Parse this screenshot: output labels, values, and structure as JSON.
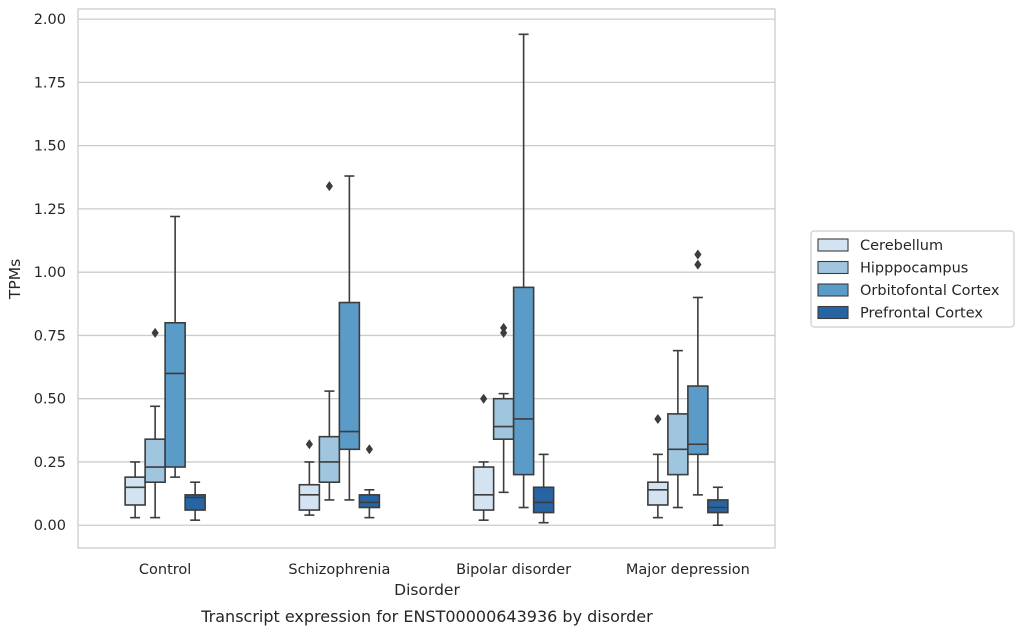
{
  "caption": "Transcript expression for ENST00000643936 by disorder",
  "chart_data": {
    "type": "box",
    "xlabel": "Disorder",
    "ylabel": "TPMs",
    "ylim": [
      -0.09,
      2.04
    ],
    "yticks": [
      0.0,
      0.25,
      0.5,
      0.75,
      1.0,
      1.25,
      1.5,
      1.75,
      2.0
    ],
    "ytick_labels": [
      "0.00",
      "0.25",
      "0.50",
      "0.75",
      "1.00",
      "1.25",
      "1.50",
      "1.75",
      "2.00"
    ],
    "grid": "horizontal",
    "legend_position": "right",
    "categories": [
      "Control",
      "Schizophrenia",
      "Bipolar disorder",
      "Major depression"
    ],
    "series": [
      {
        "name": "Cerebellum",
        "color": "#d4e3f2",
        "boxes": [
          {
            "whisker_low": 0.03,
            "q1": 0.08,
            "median": 0.15,
            "q3": 0.19,
            "whisker_high": 0.25,
            "outliers": []
          },
          {
            "whisker_low": 0.04,
            "q1": 0.06,
            "median": 0.12,
            "q3": 0.16,
            "whisker_high": 0.25,
            "outliers": [
              0.32
            ]
          },
          {
            "whisker_low": 0.02,
            "q1": 0.06,
            "median": 0.12,
            "q3": 0.23,
            "whisker_high": 0.25,
            "outliers": [
              0.5
            ]
          },
          {
            "whisker_low": 0.03,
            "q1": 0.08,
            "median": 0.14,
            "q3": 0.17,
            "whisker_high": 0.28,
            "outliers": [
              0.42
            ]
          }
        ]
      },
      {
        "name": "Hipppocampus",
        "color": "#9fc6de",
        "boxes": [
          {
            "whisker_low": 0.03,
            "q1": 0.17,
            "median": 0.23,
            "q3": 0.34,
            "whisker_high": 0.47,
            "outliers": [
              0.76
            ]
          },
          {
            "whisker_low": 0.1,
            "q1": 0.17,
            "median": 0.25,
            "q3": 0.35,
            "whisker_high": 0.53,
            "outliers": [
              1.34
            ]
          },
          {
            "whisker_low": 0.13,
            "q1": 0.34,
            "median": 0.39,
            "q3": 0.5,
            "whisker_high": 0.52,
            "outliers": [
              0.76,
              0.78
            ]
          },
          {
            "whisker_low": 0.07,
            "q1": 0.2,
            "median": 0.3,
            "q3": 0.44,
            "whisker_high": 0.69,
            "outliers": []
          }
        ]
      },
      {
        "name": "Orbitofontal Cortex",
        "color": "#5b9bc7",
        "boxes": [
          {
            "whisker_low": 0.19,
            "q1": 0.23,
            "median": 0.6,
            "q3": 0.8,
            "whisker_high": 1.22,
            "outliers": []
          },
          {
            "whisker_low": 0.1,
            "q1": 0.3,
            "median": 0.37,
            "q3": 0.88,
            "whisker_high": 1.38,
            "outliers": []
          },
          {
            "whisker_low": 0.07,
            "q1": 0.2,
            "median": 0.42,
            "q3": 0.94,
            "whisker_high": 1.94,
            "outliers": []
          },
          {
            "whisker_low": 0.12,
            "q1": 0.28,
            "median": 0.32,
            "q3": 0.55,
            "whisker_high": 0.9,
            "outliers": [
              1.03,
              1.07
            ]
          }
        ]
      },
      {
        "name": "Prefrontal Cortex",
        "color": "#2664a4",
        "boxes": [
          {
            "whisker_low": 0.02,
            "q1": 0.06,
            "median": 0.11,
            "q3": 0.12,
            "whisker_high": 0.17,
            "outliers": []
          },
          {
            "whisker_low": 0.03,
            "q1": 0.07,
            "median": 0.09,
            "q3": 0.12,
            "whisker_high": 0.14,
            "outliers": [
              0.3
            ]
          },
          {
            "whisker_low": 0.01,
            "q1": 0.05,
            "median": 0.09,
            "q3": 0.15,
            "whisker_high": 0.28,
            "outliers": []
          },
          {
            "whisker_low": 0.0,
            "q1": 0.05,
            "median": 0.07,
            "q3": 0.1,
            "whisker_high": 0.15,
            "outliers": []
          }
        ]
      }
    ]
  }
}
